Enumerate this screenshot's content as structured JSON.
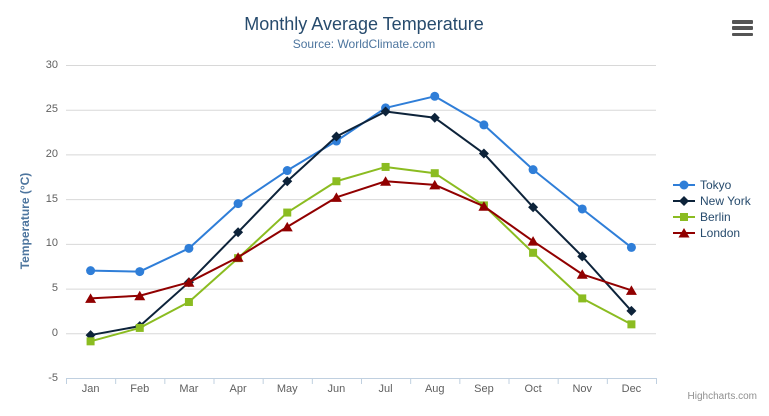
{
  "chart": {
    "credits_label": "Highcharts.com",
    "menu_icon": "hamburger-menu"
  },
  "chart_data": {
    "type": "line",
    "title": "Monthly Average Temperature",
    "subtitle": "Source: WorldClimate.com",
    "xlabel": "",
    "ylabel": "Temperature (°C)",
    "categories": [
      "Jan",
      "Feb",
      "Mar",
      "Apr",
      "May",
      "Jun",
      "Jul",
      "Aug",
      "Sep",
      "Oct",
      "Nov",
      "Dec"
    ],
    "ylim": [
      -5,
      30
    ],
    "yticks": [
      -5,
      0,
      5,
      10,
      15,
      20,
      25,
      30
    ],
    "grid": true,
    "legend_position": "right",
    "colors": {
      "grid_line": "#D8D8D8",
      "axis_line": "#C0D0E0",
      "tick": "#C0D0E0",
      "axis_label": "#606060",
      "axis_title": "#4d759e",
      "title_text": "#274b6d",
      "subtitle_text": "#4d759e",
      "legend_text": "#274b6d",
      "credits_text": "#909090"
    },
    "series": [
      {
        "name": "Tokyo",
        "color": "#2f7ed8",
        "marker": "circle",
        "values": [
          7.0,
          6.9,
          9.5,
          14.5,
          18.2,
          21.5,
          25.2,
          26.5,
          23.3,
          18.3,
          13.9,
          9.6
        ]
      },
      {
        "name": "New York",
        "color": "#0d233a",
        "marker": "diamond",
        "values": [
          -0.2,
          0.8,
          5.7,
          11.3,
          17.0,
          22.0,
          24.8,
          24.1,
          20.1,
          14.1,
          8.6,
          2.5
        ]
      },
      {
        "name": "Berlin",
        "color": "#8bbc21",
        "marker": "square",
        "values": [
          -0.9,
          0.6,
          3.5,
          8.4,
          13.5,
          17.0,
          18.6,
          17.9,
          14.3,
          9.0,
          3.9,
          1.0
        ]
      },
      {
        "name": "London",
        "color": "#910000",
        "marker": "triangle",
        "values": [
          3.9,
          4.2,
          5.7,
          8.5,
          11.9,
          15.2,
          17.0,
          16.6,
          14.2,
          10.3,
          6.6,
          4.8
        ]
      }
    ]
  }
}
